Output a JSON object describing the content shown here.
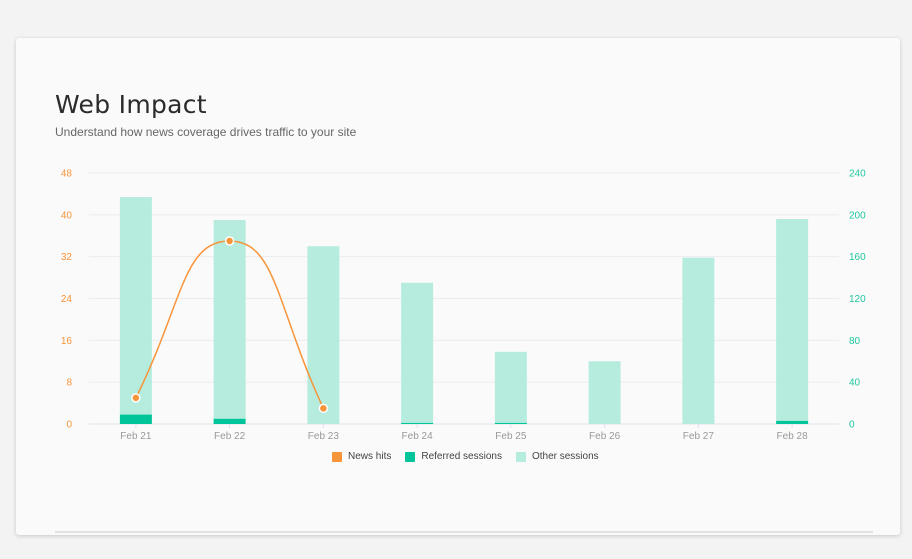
{
  "card": {
    "title": "Web Impact",
    "subtitle": "Understand how news coverage drives traffic to your site"
  },
  "chart_data": {
    "type": "bar",
    "categories": [
      "Feb 21",
      "Feb 22",
      "Feb 23",
      "Feb 24",
      "Feb 25",
      "Feb 26",
      "Feb 27",
      "Feb 28"
    ],
    "left_axis": {
      "ylim": [
        0,
        48
      ],
      "ticks": [
        "0",
        "8",
        "16",
        "24",
        "32",
        "40",
        "48"
      ],
      "color": "#f7943a"
    },
    "right_axis": {
      "ylim": [
        0,
        240
      ],
      "ticks": [
        "0",
        "40",
        "80",
        "120",
        "160",
        "200",
        "240"
      ],
      "color": "#1ec8a0"
    },
    "series": [
      {
        "name": "News hits",
        "type": "line",
        "axis": "left",
        "color": "#f7943a",
        "values": [
          5,
          35,
          3,
          null,
          null,
          null,
          null,
          null
        ]
      },
      {
        "name": "Referred sessions",
        "type": "bar",
        "stack": "s",
        "axis": "right",
        "color": "#00c59a",
        "values": [
          9,
          5,
          0,
          1,
          1,
          0,
          0,
          3
        ]
      },
      {
        "name": "Other sessions",
        "type": "bar",
        "stack": "s",
        "axis": "right",
        "color": "#b6ecde",
        "values": [
          208,
          190,
          170,
          134,
          68,
          60,
          159,
          193
        ]
      }
    ],
    "legend": [
      "News hits",
      "Referred sessions",
      "Other sessions"
    ],
    "legend_position": "bottom",
    "grid": true
  }
}
